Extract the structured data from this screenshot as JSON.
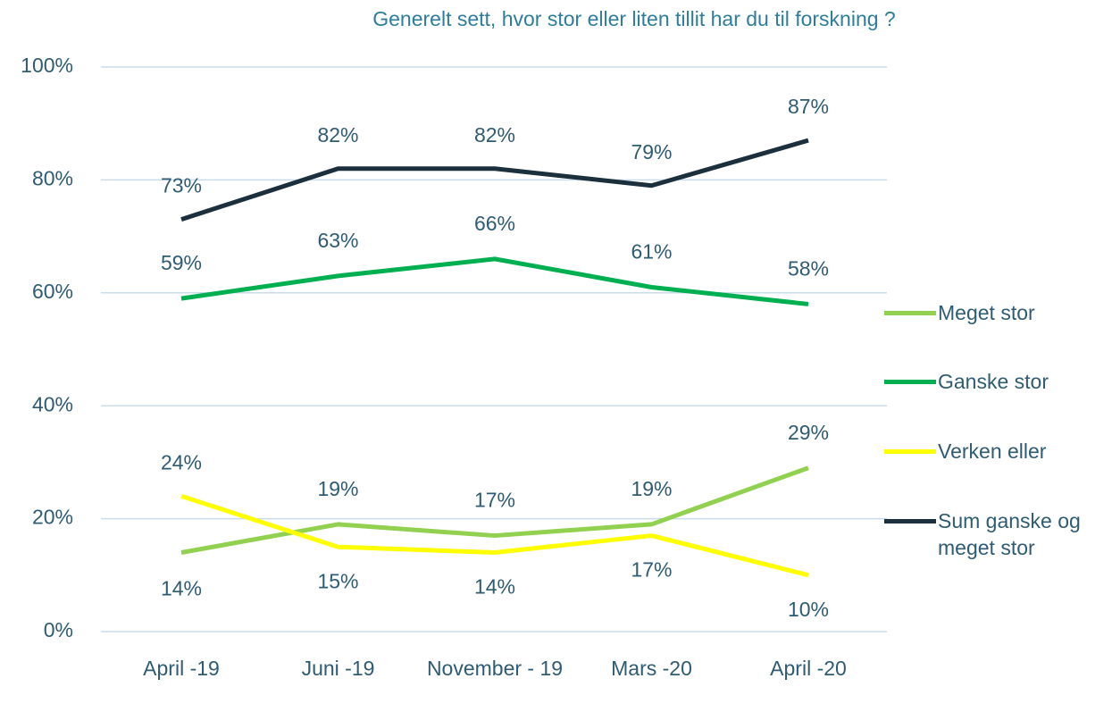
{
  "chart_data": {
    "type": "line",
    "title": "Generelt sett, hvor stor eller liten tillit har du til forskning ?",
    "categories": [
      "April -19",
      "Juni -19",
      "November - 19",
      "Mars -20",
      "April -20"
    ],
    "series": [
      {
        "name": "Meget stor",
        "color": "#92d050",
        "values": [
          14,
          19,
          17,
          19,
          29
        ],
        "value_labels": [
          "14%",
          "19%",
          "17%",
          "19%",
          "29%"
        ]
      },
      {
        "name": "Ganske stor",
        "color": "#00b050",
        "values": [
          59,
          63,
          66,
          61,
          58
        ],
        "value_labels": [
          "59%",
          "63%",
          "66%",
          "61%",
          "58%"
        ]
      },
      {
        "name": "Verken eller",
        "color": "#ffff00",
        "values": [
          24,
          15,
          14,
          17,
          10
        ],
        "value_labels": [
          "24%",
          "15%",
          "14%",
          "17%",
          "10%"
        ]
      },
      {
        "name": "Sum ganske og meget stor",
        "color": "#1b2f3c",
        "values": [
          73,
          82,
          82,
          79,
          87
        ],
        "value_labels": [
          "73%",
          "82%",
          "82%",
          "79%",
          "87%"
        ]
      }
    ],
    "ylim": [
      0,
      100
    ],
    "yticks": [
      {
        "value": 0,
        "label": "0%"
      },
      {
        "value": 20,
        "label": "20%"
      },
      {
        "value": 40,
        "label": "40%"
      },
      {
        "value": 60,
        "label": "60%"
      },
      {
        "value": 80,
        "label": "80%"
      },
      {
        "value": 100,
        "label": "100%"
      }
    ],
    "grid": true,
    "legend": "right"
  }
}
